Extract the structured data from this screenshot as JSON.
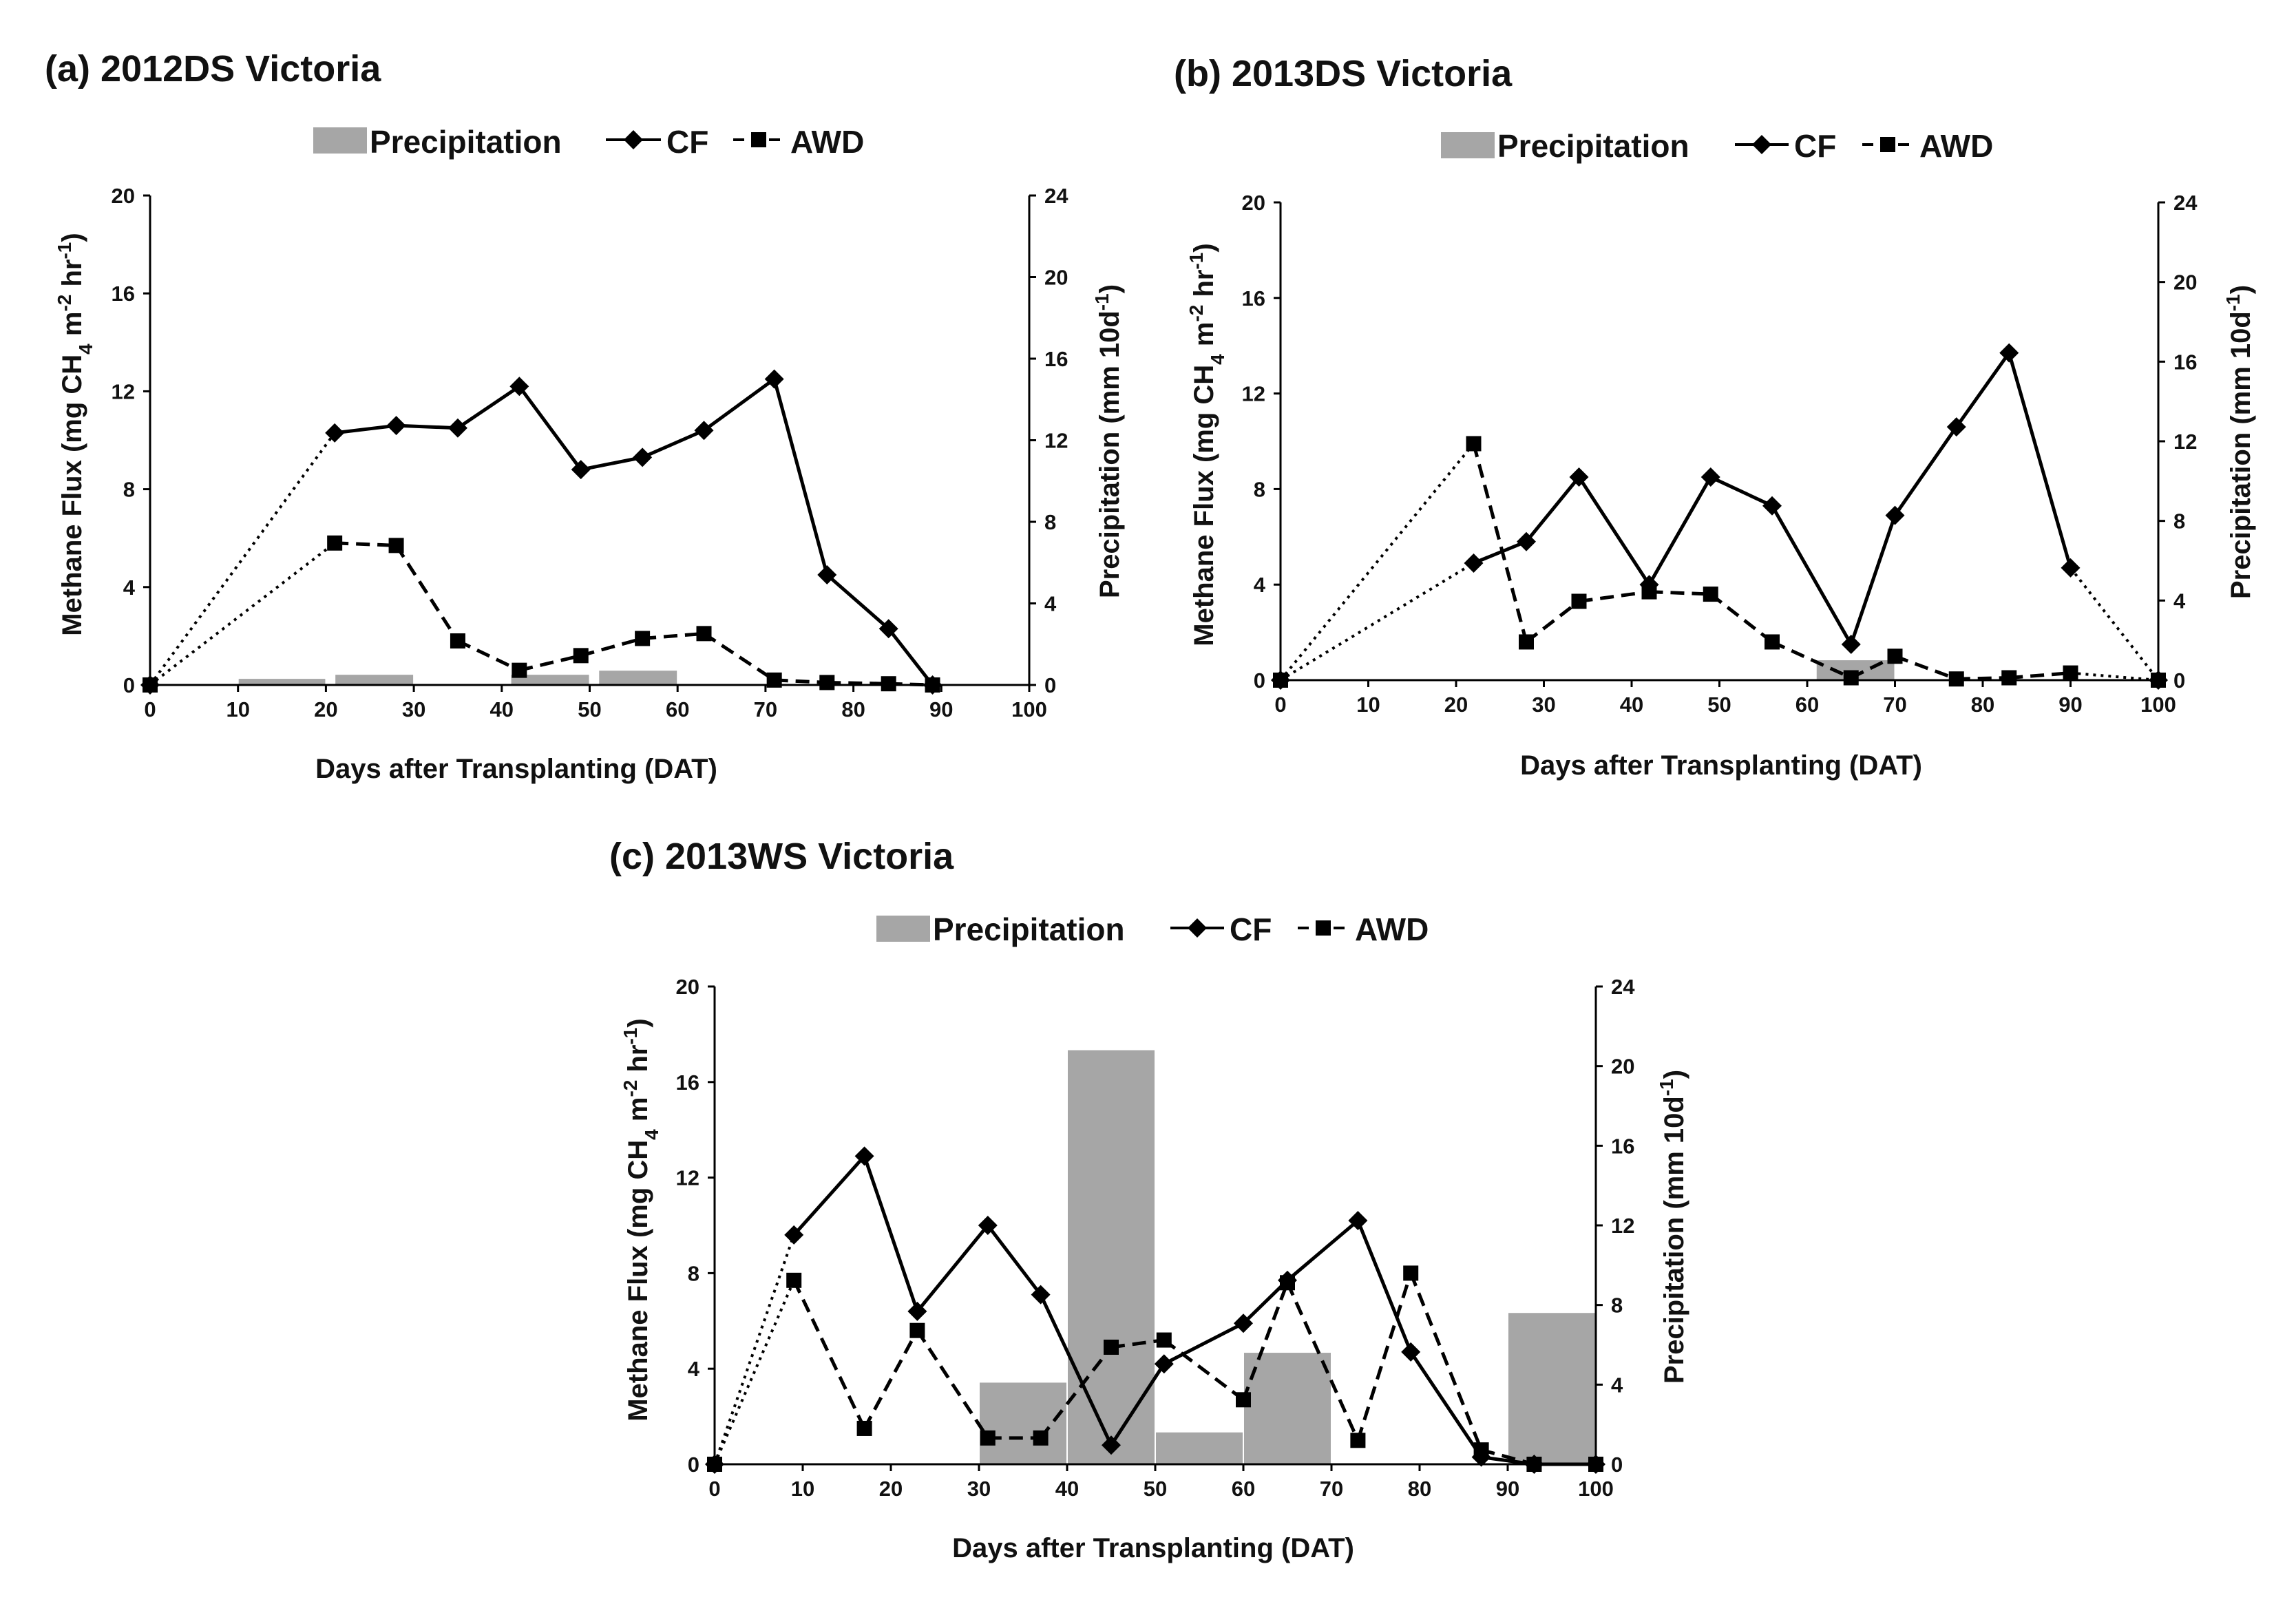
{
  "colors": {
    "precipitation": "#a6a6a6",
    "cf": "#000000",
    "awd": "#000000"
  },
  "legend": {
    "precipitation": "Precipitation",
    "cf": "CF",
    "awd": "AWD"
  },
  "chart_data": [
    {
      "type": "line",
      "title": "(a) 2012DS Victoria",
      "xlabel": "Days after Transplanting (DAT)",
      "ylabel": "Methane Flux (mg CH4 m-2 hr-1)",
      "y2label": "Precipitation (mm 10d-1)",
      "xlim": [
        0,
        100
      ],
      "ylim": [
        0,
        20
      ],
      "y2lim": [
        0,
        24
      ],
      "xticks": [
        0,
        10,
        20,
        30,
        40,
        50,
        60,
        70,
        80,
        90,
        100
      ],
      "yticks": [
        0,
        4,
        8,
        12,
        16,
        20
      ],
      "y2ticks": [
        0,
        4,
        8,
        12,
        16,
        20,
        24
      ],
      "precipitation": [
        {
          "x0": 10,
          "x1": 20,
          "value": 0.3
        },
        {
          "x0": 21,
          "x1": 30,
          "value": 0.5
        },
        {
          "x0": 41,
          "x1": 50,
          "value": 0.5
        },
        {
          "x0": 51,
          "x1": 60,
          "value": 0.7
        }
      ],
      "series": [
        {
          "name": "CF",
          "x": [
            0,
            21,
            28,
            35,
            42,
            49,
            56,
            63,
            71,
            77,
            84,
            89
          ],
          "values": [
            0,
            10.3,
            10.6,
            10.5,
            12.2,
            8.8,
            9.3,
            10.4,
            12.5,
            4.5,
            2.3,
            0
          ],
          "dotted_until": 21,
          "dotted_from": null
        },
        {
          "name": "AWD",
          "x": [
            0,
            21,
            28,
            35,
            42,
            49,
            56,
            63,
            71,
            77,
            84,
            89
          ],
          "values": [
            0,
            5.8,
            5.7,
            1.8,
            0.6,
            1.2,
            1.9,
            2.1,
            0.2,
            0.1,
            0.05,
            0
          ],
          "dotted_until": 21,
          "dotted_from": null
        }
      ]
    },
    {
      "type": "line",
      "title": "(b) 2013DS Victoria",
      "xlabel": "Days after Transplanting (DAT)",
      "ylabel": "Methane Flux (mg CH4 m-2 hr-1)",
      "y2label": "Precipitation (mm 10d-1)",
      "xlim": [
        0,
        100
      ],
      "ylim": [
        0,
        20
      ],
      "y2lim": [
        0,
        24
      ],
      "xticks": [
        0,
        10,
        20,
        30,
        40,
        50,
        60,
        70,
        80,
        90,
        100
      ],
      "yticks": [
        0,
        4,
        8,
        12,
        16,
        20
      ],
      "y2ticks": [
        0,
        4,
        8,
        12,
        16,
        20,
        24
      ],
      "precipitation": [
        {
          "x0": 61,
          "x1": 70,
          "value": 1.0
        }
      ],
      "series": [
        {
          "name": "CF",
          "x": [
            0,
            22,
            28,
            34,
            42,
            49,
            56,
            65,
            70,
            77,
            83,
            90,
            100
          ],
          "values": [
            0,
            4.9,
            5.8,
            8.5,
            4.0,
            8.5,
            7.3,
            1.5,
            6.9,
            10.6,
            13.7,
            4.7,
            0
          ],
          "dotted_until": 22,
          "dotted_from": 90
        },
        {
          "name": "AWD",
          "x": [
            0,
            22,
            28,
            34,
            42,
            49,
            56,
            65,
            70,
            77,
            83,
            90,
            100
          ],
          "values": [
            0,
            9.9,
            1.6,
            3.3,
            3.7,
            3.6,
            1.6,
            0.1,
            1.0,
            0.05,
            0.1,
            0.3,
            0
          ],
          "dotted_until": 22,
          "dotted_from": 90
        }
      ]
    },
    {
      "type": "line",
      "title": "(c) 2013WS Victoria",
      "xlabel": "Days after Transplanting (DAT)",
      "ylabel": "Methane Flux (mg CH4 m-2 hr-1)",
      "y2label": "Precipitation (mm 10d-1)",
      "xlim": [
        0,
        100
      ],
      "ylim": [
        0,
        20
      ],
      "y2lim": [
        0,
        24
      ],
      "xticks": [
        0,
        10,
        20,
        30,
        40,
        50,
        60,
        70,
        80,
        90,
        100
      ],
      "yticks": [
        0,
        4,
        8,
        12,
        16,
        20
      ],
      "y2ticks": [
        0,
        4,
        8,
        12,
        16,
        20,
        24
      ],
      "precipitation": [
        {
          "x0": 30,
          "x1": 40,
          "value": 4.1
        },
        {
          "x0": 40,
          "x1": 50,
          "value": 20.8
        },
        {
          "x0": 50,
          "x1": 60,
          "value": 1.6
        },
        {
          "x0": 60,
          "x1": 70,
          "value": 5.6
        },
        {
          "x0": 90,
          "x1": 100,
          "value": 7.6
        }
      ],
      "series": [
        {
          "name": "CF",
          "x": [
            0,
            9,
            17,
            23,
            31,
            37,
            45,
            51,
            60,
            65,
            73,
            79,
            87,
            93,
            100
          ],
          "values": [
            0,
            9.6,
            12.9,
            6.4,
            10.0,
            7.1,
            0.8,
            4.2,
            5.9,
            7.7,
            10.2,
            4.7,
            0.3,
            0,
            0
          ],
          "dotted_until": 9,
          "dotted_from": null
        },
        {
          "name": "AWD",
          "x": [
            0,
            9,
            17,
            23,
            31,
            37,
            45,
            51,
            60,
            65,
            73,
            79,
            87,
            93,
            100
          ],
          "values": [
            0,
            7.7,
            1.5,
            5.6,
            1.1,
            1.1,
            4.9,
            5.2,
            2.7,
            7.6,
            1.0,
            8.0,
            0.6,
            0,
            0
          ],
          "dotted_until": 9,
          "dotted_from": null
        }
      ]
    }
  ]
}
